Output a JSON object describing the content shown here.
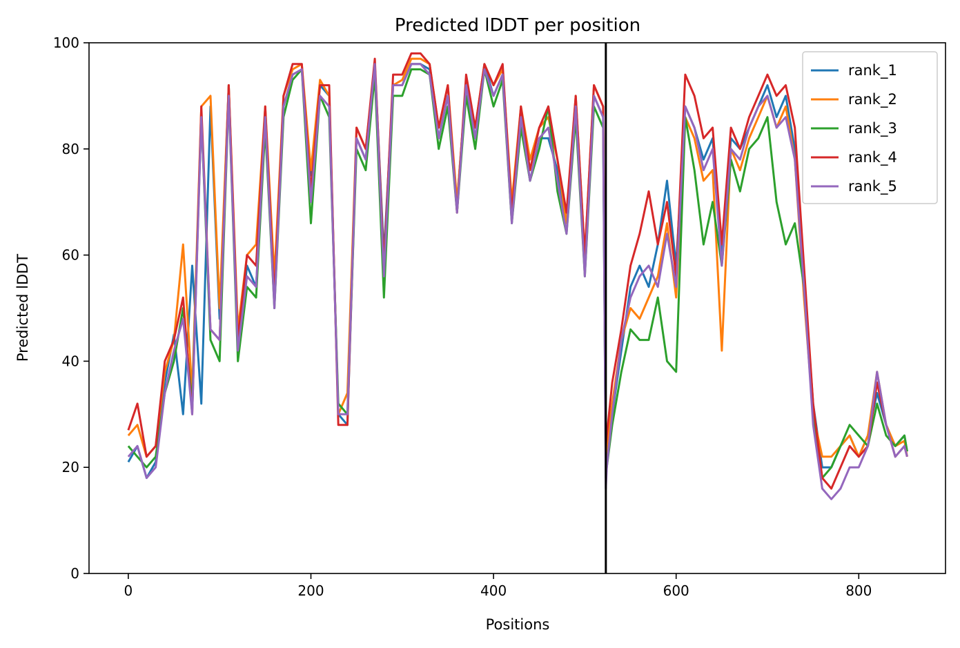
{
  "chart_data": {
    "type": "line",
    "title": "Predicted lDDT per position",
    "xlabel": "Positions",
    "ylabel": "Predicted lDDT",
    "xlim": [
      -43,
      895
    ],
    "ylim": [
      0,
      100
    ],
    "xticks": [
      0,
      200,
      400,
      600,
      800
    ],
    "yticks": [
      0,
      20,
      40,
      60,
      80,
      100
    ],
    "grid": false,
    "legend_position": "top-right",
    "vline_x": 523,
    "series": [
      {
        "name": "rank_1",
        "color": "#1f77b4",
        "x": [
          0,
          10,
          20,
          30,
          40,
          50,
          60,
          70,
          80,
          90,
          100,
          110,
          120,
          130,
          140,
          150,
          160,
          170,
          180,
          190,
          200,
          210,
          220,
          230,
          240,
          250,
          260,
          270,
          280,
          290,
          300,
          310,
          320,
          330,
          340,
          350,
          360,
          370,
          380,
          390,
          400,
          410,
          420,
          430,
          440,
          450,
          460,
          470,
          480,
          490,
          500,
          510,
          520,
          523,
          524,
          530,
          540,
          550,
          560,
          570,
          580,
          590,
          600,
          610,
          620,
          630,
          640,
          650,
          660,
          670,
          680,
          690,
          700,
          710,
          720,
          730,
          740,
          750,
          760,
          770,
          780,
          790,
          800,
          810,
          820,
          830,
          840,
          850,
          853
        ],
        "y": [
          21,
          24,
          18,
          21,
          36,
          45,
          30,
          58,
          32,
          88,
          48,
          92,
          42,
          58,
          54,
          86,
          52,
          88,
          94,
          95,
          75,
          92,
          90,
          30,
          28,
          82,
          78,
          96,
          60,
          92,
          92,
          96,
          96,
          95,
          82,
          90,
          70,
          92,
          82,
          96,
          90,
          94,
          68,
          86,
          74,
          82,
          82,
          76,
          66,
          88,
          58,
          90,
          86,
          20,
          22,
          30,
          42,
          54,
          58,
          54,
          62,
          74,
          58,
          88,
          84,
          78,
          82,
          60,
          82,
          80,
          84,
          88,
          92,
          86,
          90,
          80,
          56,
          32,
          20,
          20,
          24,
          26,
          22,
          26,
          34,
          28,
          24,
          26,
          23
        ]
      },
      {
        "name": "rank_2",
        "color": "#ff7f0e",
        "x": [
          0,
          10,
          20,
          30,
          40,
          50,
          60,
          70,
          80,
          90,
          100,
          110,
          120,
          130,
          140,
          150,
          160,
          170,
          180,
          190,
          200,
          210,
          220,
          230,
          240,
          250,
          260,
          270,
          280,
          290,
          300,
          310,
          320,
          330,
          340,
          350,
          360,
          370,
          380,
          390,
          400,
          410,
          420,
          430,
          440,
          450,
          460,
          470,
          480,
          490,
          500,
          510,
          520,
          523,
          524,
          530,
          540,
          550,
          560,
          570,
          580,
          590,
          600,
          610,
          620,
          630,
          640,
          650,
          660,
          670,
          680,
          690,
          700,
          710,
          720,
          730,
          740,
          750,
          760,
          770,
          780,
          790,
          800,
          810,
          820,
          830,
          840,
          850,
          853
        ],
        "y": [
          26,
          28,
          22,
          24,
          38,
          44,
          62,
          34,
          88,
          90,
          50,
          92,
          46,
          60,
          62,
          88,
          56,
          90,
          95,
          96,
          76,
          93,
          90,
          30,
          34,
          84,
          80,
          96,
          58,
          92,
          93,
          97,
          97,
          96,
          84,
          92,
          70,
          92,
          84,
          96,
          92,
          95,
          70,
          88,
          78,
          84,
          86,
          78,
          66,
          90,
          60,
          92,
          88,
          22,
          24,
          32,
          44,
          50,
          48,
          52,
          56,
          66,
          52,
          86,
          82,
          74,
          76,
          42,
          80,
          76,
          82,
          86,
          90,
          84,
          88,
          78,
          52,
          30,
          22,
          22,
          24,
          26,
          22,
          26,
          38,
          28,
          24,
          25,
          22
        ]
      },
      {
        "name": "rank_3",
        "color": "#2ca02c",
        "x": [
          0,
          10,
          20,
          30,
          40,
          50,
          60,
          70,
          80,
          90,
          100,
          110,
          120,
          130,
          140,
          150,
          160,
          170,
          180,
          190,
          200,
          210,
          220,
          230,
          240,
          250,
          260,
          270,
          280,
          290,
          300,
          310,
          320,
          330,
          340,
          350,
          360,
          370,
          380,
          390,
          400,
          410,
          420,
          430,
          440,
          450,
          460,
          470,
          480,
          490,
          500,
          510,
          520,
          523,
          524,
          530,
          540,
          550,
          560,
          570,
          580,
          590,
          600,
          610,
          620,
          630,
          640,
          650,
          660,
          670,
          680,
          690,
          700,
          710,
          720,
          730,
          740,
          750,
          760,
          770,
          780,
          790,
          800,
          810,
          820,
          830,
          840,
          850,
          853
        ],
        "y": [
          24,
          22,
          20,
          22,
          34,
          40,
          50,
          32,
          86,
          44,
          40,
          90,
          40,
          54,
          52,
          84,
          50,
          86,
          93,
          95,
          66,
          90,
          86,
          32,
          30,
          80,
          76,
          94,
          52,
          90,
          90,
          95,
          95,
          94,
          80,
          88,
          68,
          90,
          80,
          95,
          88,
          93,
          66,
          84,
          74,
          80,
          88,
          72,
          64,
          86,
          56,
          88,
          84,
          18,
          20,
          28,
          38,
          46,
          44,
          44,
          52,
          40,
          38,
          86,
          76,
          62,
          70,
          58,
          78,
          72,
          80,
          82,
          86,
          70,
          62,
          66,
          54,
          30,
          18,
          20,
          24,
          28,
          26,
          24,
          32,
          26,
          24,
          26,
          23
        ]
      },
      {
        "name": "rank_4",
        "color": "#d62728",
        "x": [
          0,
          10,
          20,
          30,
          40,
          50,
          60,
          70,
          80,
          90,
          100,
          110,
          120,
          130,
          140,
          150,
          160,
          170,
          180,
          190,
          200,
          210,
          220,
          230,
          240,
          250,
          260,
          270,
          280,
          290,
          300,
          310,
          320,
          330,
          340,
          350,
          360,
          370,
          380,
          390,
          400,
          410,
          420,
          430,
          440,
          450,
          460,
          470,
          480,
          490,
          500,
          510,
          520,
          523,
          524,
          530,
          540,
          550,
          560,
          570,
          580,
          590,
          600,
          610,
          620,
          630,
          640,
          650,
          660,
          670,
          680,
          690,
          700,
          710,
          720,
          730,
          740,
          750,
          760,
          770,
          780,
          790,
          800,
          810,
          820,
          830,
          840,
          850,
          853
        ],
        "y": [
          27,
          32,
          22,
          24,
          40,
          44,
          52,
          30,
          88,
          46,
          44,
          92,
          44,
          60,
          58,
          88,
          52,
          90,
          96,
          96,
          72,
          92,
          92,
          28,
          28,
          84,
          80,
          97,
          58,
          94,
          94,
          98,
          98,
          96,
          84,
          92,
          68,
          94,
          84,
          96,
          92,
          96,
          68,
          88,
          76,
          84,
          88,
          78,
          68,
          90,
          60,
          92,
          88,
          24,
          26,
          36,
          46,
          58,
          64,
          72,
          62,
          70,
          56,
          94,
          90,
          82,
          84,
          62,
          84,
          80,
          86,
          90,
          94,
          90,
          92,
          84,
          58,
          32,
          18,
          16,
          20,
          24,
          22,
          24,
          36,
          28,
          22,
          24,
          22
        ]
      },
      {
        "name": "rank_5",
        "color": "#9467bd",
        "x": [
          0,
          10,
          20,
          30,
          40,
          50,
          60,
          70,
          80,
          90,
          100,
          110,
          120,
          130,
          140,
          150,
          160,
          170,
          180,
          190,
          200,
          210,
          220,
          230,
          240,
          250,
          260,
          270,
          280,
          290,
          300,
          310,
          320,
          330,
          340,
          350,
          360,
          370,
          380,
          390,
          400,
          410,
          420,
          430,
          440,
          450,
          460,
          470,
          480,
          490,
          500,
          510,
          520,
          523,
          524,
          530,
          540,
          550,
          560,
          570,
          580,
          590,
          600,
          610,
          620,
          630,
          640,
          650,
          660,
          670,
          680,
          690,
          700,
          710,
          720,
          730,
          740,
          750,
          760,
          770,
          780,
          790,
          800,
          810,
          820,
          830,
          840,
          850,
          853
        ],
        "y": [
          22,
          24,
          18,
          20,
          34,
          42,
          48,
          30,
          86,
          46,
          44,
          90,
          42,
          56,
          54,
          86,
          50,
          88,
          94,
          95,
          70,
          90,
          88,
          30,
          30,
          82,
          78,
          96,
          56,
          92,
          92,
          96,
          96,
          94,
          82,
          90,
          68,
          92,
          82,
          95,
          90,
          94,
          66,
          86,
          74,
          82,
          84,
          74,
          64,
          88,
          56,
          90,
          86,
          16,
          20,
          30,
          44,
          52,
          56,
          58,
          54,
          64,
          54,
          88,
          84,
          76,
          80,
          58,
          80,
          78,
          84,
          88,
          90,
          84,
          86,
          78,
          54,
          28,
          16,
          14,
          16,
          20,
          20,
          24,
          38,
          28,
          22,
          24,
          22
        ]
      }
    ]
  }
}
